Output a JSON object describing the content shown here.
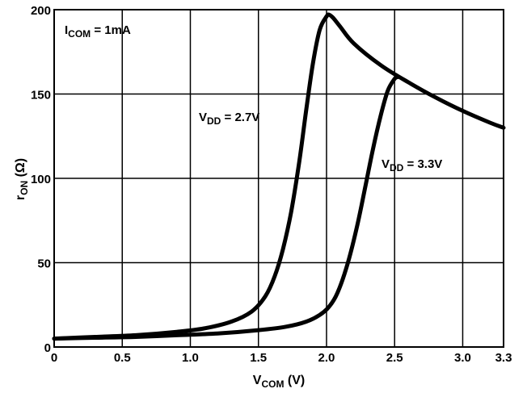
{
  "chart_data": {
    "type": "line",
    "title": "",
    "annotation": {
      "main": "I",
      "sub": "COM",
      "rest": " = 1mA"
    },
    "xlabel": {
      "main": "V",
      "sub": "COM",
      "rest": " (V)"
    },
    "ylabel": {
      "main": "r",
      "sub": "ON",
      "rest": " (Ω)"
    },
    "xlim": [
      0,
      3.3
    ],
    "ylim": [
      0,
      200
    ],
    "xticks": [
      0,
      0.5,
      1.0,
      1.5,
      2.0,
      2.5,
      3.0,
      3.3
    ],
    "xtick_labels": [
      "0",
      "0.5",
      "1.0",
      "1.5",
      "2.0",
      "2.5",
      "3.0",
      "3.3"
    ],
    "yticks": [
      0,
      50,
      100,
      150,
      200
    ],
    "ytick_labels": [
      "0",
      "50",
      "100",
      "150",
      "200"
    ],
    "grid": true,
    "series": [
      {
        "name": "V_DD = 2.7V",
        "label": {
          "main": "V",
          "sub": "DD",
          "rest": " = 2.7V"
        },
        "x": [
          0,
          0.3,
          0.6,
          0.9,
          1.1,
          1.3,
          1.45,
          1.55,
          1.62,
          1.68,
          1.74,
          1.8,
          1.85,
          1.9,
          1.95,
          2.0,
          2.02,
          2.05,
          2.1,
          2.2,
          2.4,
          2.6,
          2.8,
          3.0,
          3.2,
          3.3
        ],
        "y": [
          5,
          6,
          7,
          9,
          11,
          15,
          21,
          30,
          42,
          58,
          80,
          110,
          140,
          168,
          188,
          196,
          197,
          195,
          190,
          180,
          167,
          157,
          148,
          140,
          133,
          130
        ]
      },
      {
        "name": "V_DD = 3.3V",
        "label": {
          "main": "V",
          "sub": "DD",
          "rest": " = 3.3V"
        },
        "x": [
          0,
          0.3,
          0.6,
          0.9,
          1.2,
          1.5,
          1.7,
          1.85,
          1.95,
          2.02,
          2.08,
          2.15,
          2.22,
          2.28,
          2.34,
          2.4,
          2.45,
          2.5,
          2.52
        ],
        "y": [
          5,
          5.5,
          6,
          7,
          8,
          10,
          12,
          15,
          19,
          24,
          32,
          48,
          70,
          93,
          117,
          138,
          152,
          159,
          160
        ]
      }
    ]
  }
}
